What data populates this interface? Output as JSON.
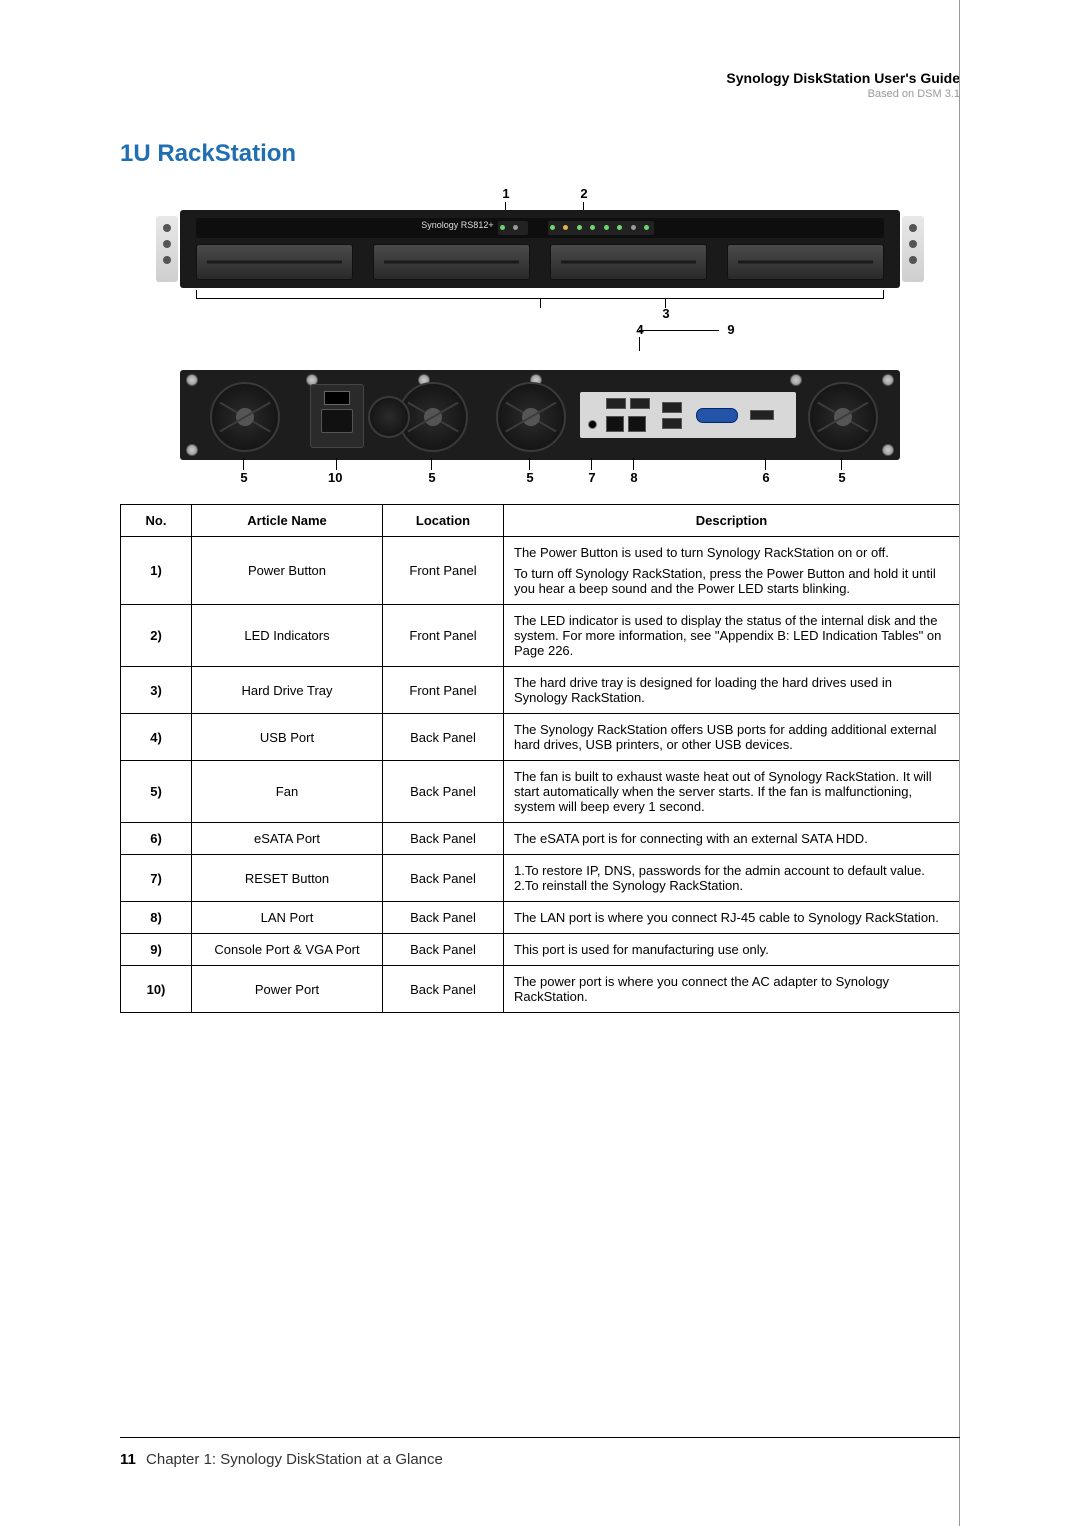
{
  "header": {
    "title": "Synology DiskStation User's Guide",
    "subtitle": "Based on DSM 3.1"
  },
  "section_title": "1U RackStation",
  "diagram": {
    "front_brand": "Synology   RS812+",
    "front_callouts": [
      "1",
      "2",
      "3"
    ],
    "back_callouts_top": [
      "4",
      "9"
    ],
    "back_callouts_bottom": [
      "5",
      "10",
      "5",
      "5",
      "7",
      "8",
      "6",
      "5"
    ],
    "colors": {
      "chassis": "#1a1a1a",
      "ear": "#d9d9d9",
      "io_panel": "#d8d8d8",
      "vga": "#2454a8",
      "led_green": "#6fd66f",
      "led_amber": "#e2b34a"
    }
  },
  "table": {
    "headers": [
      "No.",
      "Article Name",
      "Location",
      "Description"
    ],
    "rows": [
      {
        "no": "1)",
        "name": "Power Button",
        "loc": "Front Panel",
        "desc": [
          "The Power Button is used to turn Synology RackStation on or off.",
          "To turn off Synology RackStation, press the Power Button and hold it until you hear a beep sound and the Power LED starts blinking."
        ]
      },
      {
        "no": "2)",
        "name": "LED Indicators",
        "loc": "Front Panel",
        "desc": [
          "The LED indicator is used to display the status of the internal disk and the system. For more information, see \"Appendix B: LED Indication Tables\" on Page 226."
        ]
      },
      {
        "no": "3)",
        "name": "Hard Drive Tray",
        "loc": "Front Panel",
        "desc": [
          "The hard drive tray is designed for loading the hard drives used in Synology RackStation."
        ]
      },
      {
        "no": "4)",
        "name": "USB Port",
        "loc": "Back Panel",
        "desc": [
          "The Synology RackStation offers USB ports for adding additional external hard drives, USB printers, or other USB devices."
        ]
      },
      {
        "no": "5)",
        "name": "Fan",
        "loc": "Back Panel",
        "desc": [
          "The fan is built to exhaust waste heat out of Synology RackStation. It will start automatically when the server starts. If the fan is malfunctioning, system will beep every 1 second."
        ]
      },
      {
        "no": "6)",
        "name": "eSATA Port",
        "loc": "Back Panel",
        "desc": [
          "The eSATA port is for connecting with an external SATA HDD."
        ]
      },
      {
        "no": "7)",
        "name": "RESET Button",
        "loc": "Back Panel",
        "desc": [
          "1.To restore IP, DNS, passwords for the admin account to default value. 2.To reinstall the Synology RackStation."
        ]
      },
      {
        "no": "8)",
        "name": "LAN Port",
        "loc": "Back Panel",
        "desc": [
          "The LAN port is where you connect RJ-45 cable to Synology RackStation."
        ]
      },
      {
        "no": "9)",
        "name": "Console Port & VGA Port",
        "loc": "Back Panel",
        "desc": [
          "This port is used for manufacturing use only."
        ]
      },
      {
        "no": "10)",
        "name": "Power Port",
        "loc": "Back Panel",
        "desc": [
          "The power port is where you connect the AC adapter to Synology RackStation."
        ]
      }
    ]
  },
  "footer": {
    "page": "11",
    "chapter": "Chapter 1: Synology DiskStation at a Glance"
  }
}
